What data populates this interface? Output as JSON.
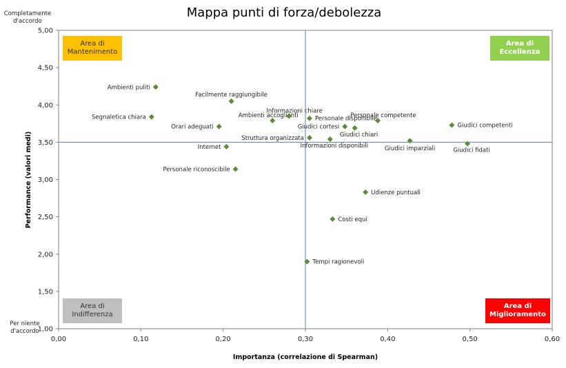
{
  "chart_data": {
    "type": "scatter",
    "title": "Mappa punti di forza/debolezza",
    "xlabel": "Importanza (correlazione di Spearman)",
    "ylabel": "Performance (valori medi)",
    "xlim": [
      0,
      0.6
    ],
    "ylim": [
      1,
      5
    ],
    "x_ticks": [
      "0,00",
      "0,10",
      "0,20",
      "0,30",
      "0,40",
      "0,50",
      "0,60"
    ],
    "y_ticks": [
      "1,00",
      "1,50",
      "2,00",
      "2,50",
      "3,00",
      "3,50",
      "4,00",
      "4,50",
      "5,00"
    ],
    "reference_lines": {
      "x": 0.3,
      "y": 3.5
    },
    "y_top_caption": [
      "Completamente",
      "d'accordo"
    ],
    "y_bottom_caption": [
      "Per niente",
      "d'accordo"
    ],
    "areas": [
      {
        "lines": [
          "Area di",
          "Mantenimento"
        ],
        "position": "top-left",
        "fill": "#FFC000",
        "text_color": "#333333"
      },
      {
        "lines": [
          "Area di",
          "Eccellenza"
        ],
        "position": "top-right",
        "fill": "#92D050",
        "text_color": "#FFFFFF"
      },
      {
        "lines": [
          "Area di",
          "Indifferenza"
        ],
        "position": "bottom-left",
        "fill": "#BFBFBF",
        "text_color": "#333333"
      },
      {
        "lines": [
          "Area di",
          "Miglioramento"
        ],
        "position": "bottom-right",
        "fill": "#FF0000",
        "text_color": "#FFFFFF"
      }
    ],
    "marker_color": "#5E8B3A",
    "line_color": "#5B7FA6",
    "grid": false,
    "points": [
      {
        "label": "Ambienti puliti",
        "x": 0.118,
        "y": 4.24,
        "label_pos": "left"
      },
      {
        "label": "Facilmente raggiungibile",
        "x": 0.21,
        "y": 4.05,
        "label_pos": "above"
      },
      {
        "label": "Segnaletica chiara",
        "x": 0.113,
        "y": 3.84,
        "label_pos": "left"
      },
      {
        "label": "Ambienti accoglienti",
        "x": 0.26,
        "y": 3.79,
        "label_pos": "above-left"
      },
      {
        "label": "Informazioni chiare",
        "x": 0.28,
        "y": 3.85,
        "label_pos": "above-right"
      },
      {
        "label": "Orari adeguati",
        "x": 0.195,
        "y": 3.71,
        "label_pos": "left"
      },
      {
        "label": "Personale disponibile",
        "x": 0.305,
        "y": 3.82,
        "label_pos": "right"
      },
      {
        "label": "Giudici cortesi",
        "x": 0.348,
        "y": 3.71,
        "label_pos": "left"
      },
      {
        "label": "Giudici chiari",
        "x": 0.36,
        "y": 3.69,
        "label_pos": "below-right"
      },
      {
        "label": "Personale competente",
        "x": 0.388,
        "y": 3.79,
        "label_pos": "above-right"
      },
      {
        "label": "Giudici competenti",
        "x": 0.478,
        "y": 3.73,
        "label_pos": "right"
      },
      {
        "label": "Struttura organizzata",
        "x": 0.305,
        "y": 3.56,
        "label_pos": "left"
      },
      {
        "label": "Informazioni disponibili",
        "x": 0.33,
        "y": 3.54,
        "label_pos": "below-right"
      },
      {
        "label": "Giudici imparziali",
        "x": 0.427,
        "y": 3.52,
        "label_pos": "below"
      },
      {
        "label": "Giudici fidati",
        "x": 0.497,
        "y": 3.48,
        "label_pos": "below-right"
      },
      {
        "label": "Internet",
        "x": 0.204,
        "y": 3.44,
        "label_pos": "left"
      },
      {
        "label": "Personale riconoscibile",
        "x": 0.215,
        "y": 3.14,
        "label_pos": "left"
      },
      {
        "label": "Udienze puntuali",
        "x": 0.373,
        "y": 2.83,
        "label_pos": "right"
      },
      {
        "label": "Costi equi",
        "x": 0.333,
        "y": 2.47,
        "label_pos": "right"
      },
      {
        "label": "Tempi ragionevoli",
        "x": 0.302,
        "y": 1.9,
        "label_pos": "right"
      }
    ]
  }
}
